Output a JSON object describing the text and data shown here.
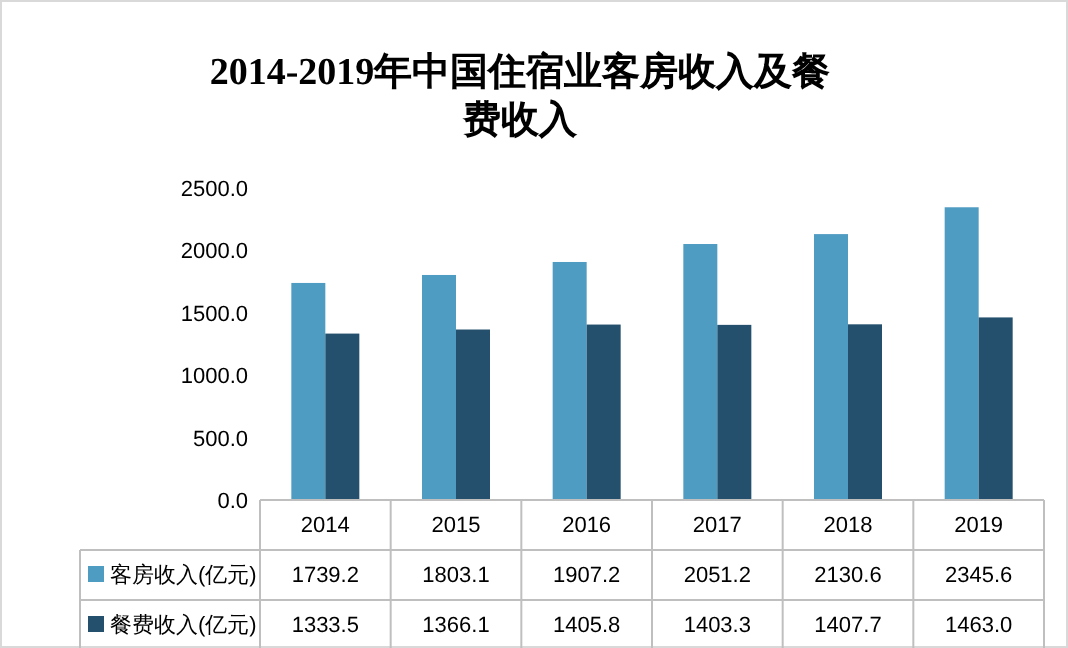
{
  "chart_data": {
    "type": "bar",
    "title": "2014-2019年中国住宿业客房收入及餐费收入",
    "categories": [
      "2014",
      "2015",
      "2016",
      "2017",
      "2018",
      "2019"
    ],
    "series": [
      {
        "name": "客房收入(亿元)",
        "color": "#4f9cc2",
        "values": [
          1739.2,
          1803.1,
          1907.2,
          2051.2,
          2130.6,
          2345.6
        ],
        "value_labels": [
          "1739.2",
          "1803.1",
          "1907.2",
          "2051.2",
          "2130.6",
          "2345.6"
        ]
      },
      {
        "name": "餐费收入(亿元)",
        "color": "#24506e",
        "values": [
          1333.5,
          1366.1,
          1405.8,
          1403.3,
          1407.7,
          1463.0
        ],
        "value_labels": [
          "1333.5",
          "1366.1",
          "1405.8",
          "1403.3",
          "1407.7",
          "1463.0"
        ]
      }
    ],
    "ylim": [
      0,
      2500
    ],
    "yticks": [
      {
        "value": 0,
        "label": "0.0"
      },
      {
        "value": 500,
        "label": "500.0"
      },
      {
        "value": 1000,
        "label": "1000.0"
      },
      {
        "value": 1500,
        "label": "1500.0"
      },
      {
        "value": 2000,
        "label": "2000.0"
      },
      {
        "value": 2500,
        "label": "2500.0"
      }
    ],
    "grid": false,
    "legend": "bottom"
  }
}
